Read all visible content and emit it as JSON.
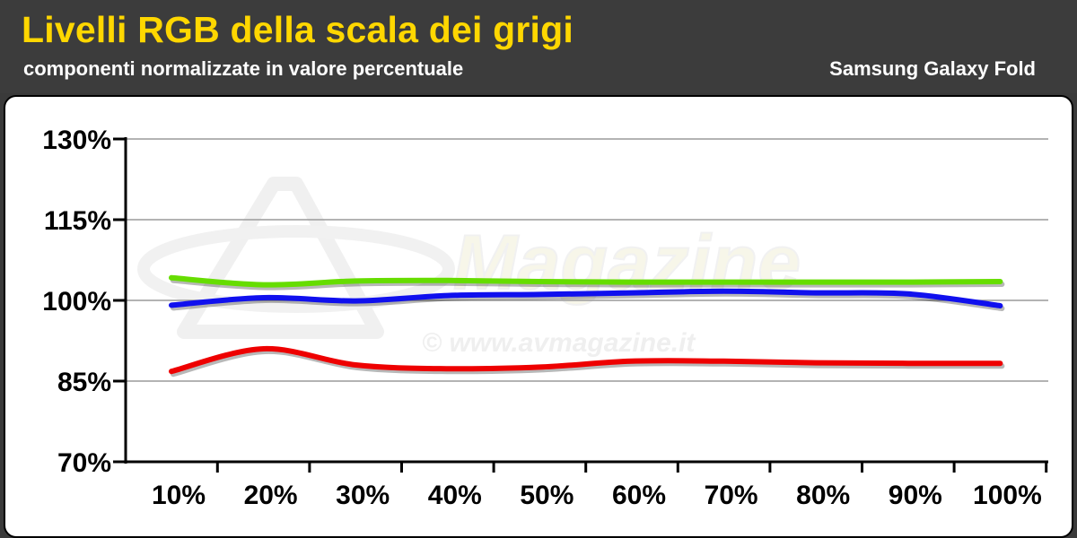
{
  "header": {
    "title": "Livelli RGB della scala dei grigi",
    "subtitle": "componenti normalizzate in valore percentuale",
    "device": "Samsung Galaxy Fold"
  },
  "watermark": {
    "brand": "Magazine",
    "url": "© www.avmagazine.it"
  },
  "colors": {
    "header_bg": "#3c3c3c",
    "title": "#ffd700",
    "grid": "#9a9a9a"
  },
  "chart_data": {
    "type": "line",
    "categories": [
      "10%",
      "20%",
      "30%",
      "40%",
      "50%",
      "60%",
      "70%",
      "80%",
      "90%",
      "100%"
    ],
    "ylim": [
      70,
      130
    ],
    "yticks": [
      70,
      85,
      100,
      115,
      130
    ],
    "ytick_labels": [
      "70%",
      "85%",
      "100%",
      "115%",
      "130%"
    ],
    "grid": true,
    "series": [
      {
        "color": "#66dd00",
        "values": [
          104.2,
          102.9,
          103.6,
          103.7,
          103.5,
          103.4,
          103.4,
          103.4,
          103.4,
          103.5
        ]
      },
      {
        "color": "#1010ee",
        "values": [
          99.1,
          100.5,
          99.9,
          100.9,
          101.1,
          101.4,
          101.7,
          101.4,
          101.2,
          99.0
        ]
      },
      {
        "color": "#ee0000",
        "values": [
          86.8,
          91.0,
          88.0,
          87.3,
          87.6,
          88.7,
          88.7,
          88.4,
          88.3,
          88.3
        ]
      }
    ]
  }
}
